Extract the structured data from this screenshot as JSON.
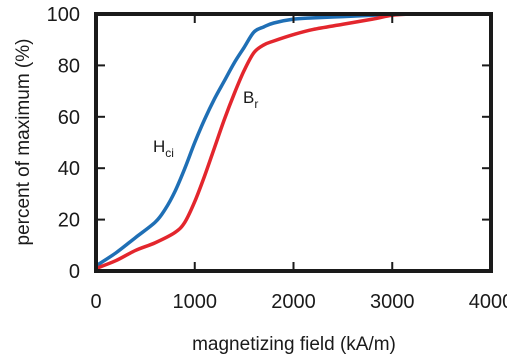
{
  "chart_data": {
    "type": "line",
    "title": "",
    "xlabel": "magnetizing field (kA/m)",
    "ylabel": "percent of maximum (%)",
    "xlim": [
      0,
      4000
    ],
    "ylim": [
      0,
      100
    ],
    "xticks": [
      0,
      1000,
      2000,
      3000,
      4000
    ],
    "yticks": [
      0,
      20,
      40,
      60,
      80,
      100
    ],
    "grid": false,
    "legend": "none",
    "series": [
      {
        "color": "#1f6fb5",
        "annotation": {
          "main": "H",
          "sub": "ci"
        },
        "x": [
          0,
          200,
          400,
          600,
          700,
          800,
          900,
          1000,
          1100,
          1200,
          1300,
          1400,
          1500,
          1600,
          1700,
          1800,
          2000,
          2200,
          2500,
          2800,
          3000,
          3200
        ],
        "y": [
          2,
          7,
          13,
          19,
          24,
          31,
          40,
          50,
          59,
          67,
          74,
          81,
          87,
          93,
          95,
          96.5,
          98,
          98.5,
          99,
          99.5,
          99.8,
          100
        ]
      },
      {
        "color": "#e3262d",
        "annotation": {
          "main": "B",
          "sub": "r"
        },
        "x": [
          0,
          200,
          400,
          600,
          800,
          900,
          1000,
          1100,
          1200,
          1300,
          1400,
          1500,
          1600,
          1700,
          1800,
          2000,
          2200,
          2500,
          2800,
          3000,
          3200
        ],
        "y": [
          1,
          4,
          8,
          11,
          15,
          19,
          27,
          37,
          48,
          59,
          69,
          78,
          85,
          88,
          89.5,
          92,
          94,
          96,
          98,
          99.5,
          100
        ]
      }
    ]
  }
}
